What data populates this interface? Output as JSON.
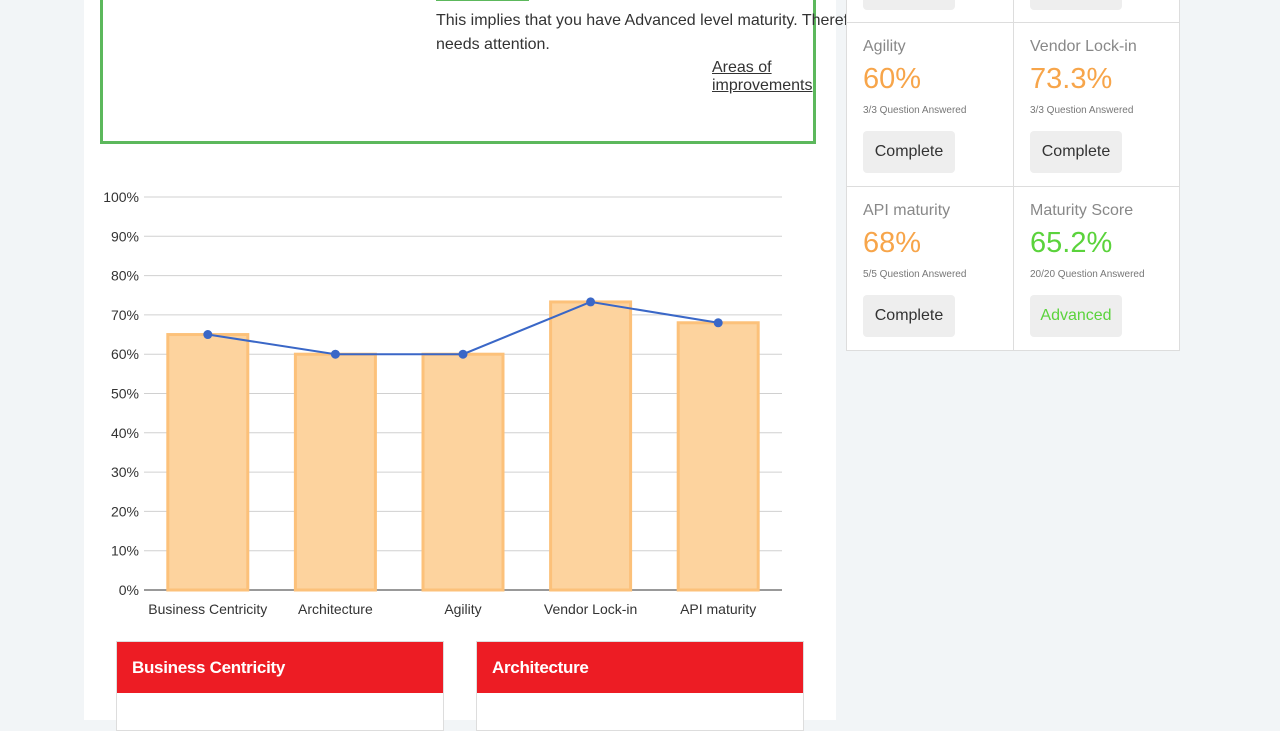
{
  "summary": {
    "text": "This implies that you have Advanced level maturity. Therefore, needs attention.",
    "link_label": "Areas of improvements"
  },
  "colors": {
    "accent_green": "#5cb85c",
    "bar_fill": "#fdd39e",
    "bar_stroke": "#fcc17a",
    "line_color": "#3a67c7",
    "card_header_red": "#ed1c24",
    "score_orange": "#f7a54a",
    "score_green": "#5bd33c"
  },
  "chart_data": {
    "type": "bar",
    "categories": [
      "Business Centricity",
      "Architecture",
      "Agility",
      "Vendor Lock-in",
      "API maturity"
    ],
    "series": [
      {
        "type": "bar",
        "values": [
          65,
          60,
          60,
          73.3,
          68
        ]
      },
      {
        "type": "line",
        "values": [
          65,
          60,
          60,
          73.3,
          68
        ]
      }
    ],
    "ylim": [
      0,
      100
    ],
    "yticks": [
      "0%",
      "10%",
      "20%",
      "30%",
      "40%",
      "50%",
      "60%",
      "70%",
      "80%",
      "90%",
      "100%"
    ],
    "grid": true
  },
  "cards": [
    {
      "title": "Business Centricity"
    },
    {
      "title": "Architecture"
    }
  ],
  "scores": [
    {
      "title": "Agility",
      "value": "60%",
      "answered": "3/3 Question Answered",
      "button": "Complete"
    },
    {
      "title": "Vendor Lock-in",
      "value": "73.3%",
      "answered": "3/3 Question Answered",
      "button": "Complete"
    },
    {
      "title": "API maturity",
      "value": "68%",
      "answered": "5/5 Question Answered",
      "button": "Complete"
    },
    {
      "title": "Maturity Score",
      "value": "65.2%",
      "answered": "20/20 Question Answered",
      "button": "Advanced"
    }
  ]
}
